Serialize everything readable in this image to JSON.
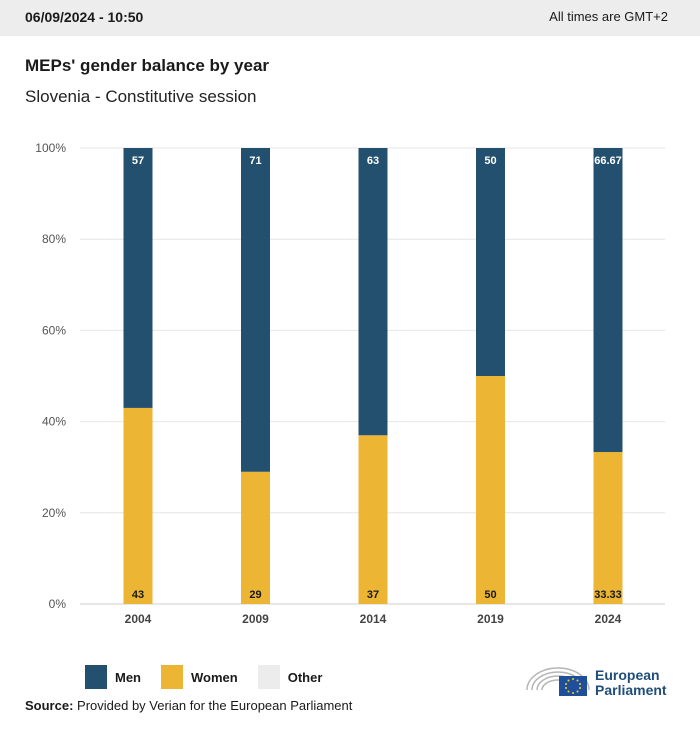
{
  "header": {
    "timestamp": "06/09/2024 - 10:50",
    "timezone_note": "All times are GMT+2"
  },
  "title": "MEPs' gender balance by year",
  "subtitle": "Slovenia - Constitutive session",
  "legend": [
    {
      "label": "Men",
      "color": "#24506f"
    },
    {
      "label": "Women",
      "color": "#ecb534"
    },
    {
      "label": "Other",
      "color": "#ececec"
    }
  ],
  "source": {
    "prefix": "Source:",
    "text": "Provided by Verian for the European Parliament"
  },
  "logo": {
    "line1": "European",
    "line2": "Parliament"
  },
  "chart_data": {
    "type": "bar",
    "stacked": true,
    "categories": [
      "2004",
      "2009",
      "2014",
      "2019",
      "2024"
    ],
    "series": [
      {
        "name": "Women",
        "values": [
          43,
          29,
          37,
          50,
          33.33
        ],
        "labels": [
          "43",
          "29",
          "37",
          "50",
          "33.33"
        ],
        "color": "#ecb534"
      },
      {
        "name": "Men",
        "values": [
          57,
          71,
          63,
          50,
          66.67
        ],
        "labels": [
          "57",
          "71",
          "63",
          "50",
          "66.67"
        ],
        "color": "#24506f"
      }
    ],
    "ylim": [
      0,
      100
    ],
    "yticks": [
      "0%",
      "20%",
      "40%",
      "60%",
      "80%",
      "100%"
    ],
    "grid": true
  }
}
